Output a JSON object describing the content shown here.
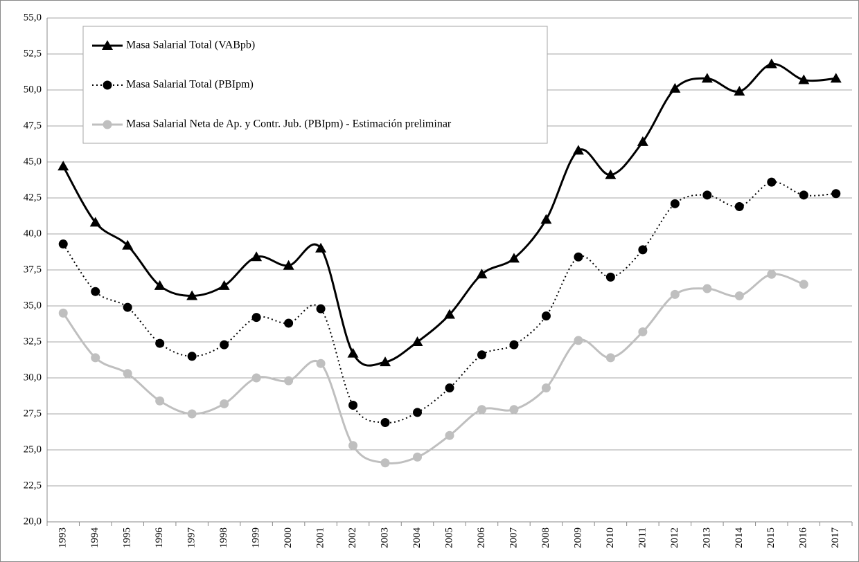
{
  "chart_data": {
    "type": "line",
    "categories": [
      "1993",
      "1994",
      "1995",
      "1996",
      "1997",
      "1998",
      "1999",
      "2000",
      "2001",
      "2002",
      "2003",
      "2004",
      "2005",
      "2006",
      "2007",
      "2008",
      "2009",
      "2010",
      "2011",
      "2012",
      "2013",
      "2014",
      "2015",
      "2016",
      "2017"
    ],
    "series": [
      {
        "name": "Masa Salarial Total (VABpb)",
        "color": "#000000",
        "marker": "triangle",
        "dash": "solid",
        "values": [
          44.7,
          40.8,
          39.2,
          36.4,
          35.7,
          36.4,
          38.4,
          37.8,
          39.0,
          31.7,
          31.1,
          32.5,
          34.4,
          37.2,
          38.3,
          41.0,
          45.8,
          44.1,
          46.4,
          50.1,
          50.8,
          49.9,
          51.8,
          50.7,
          50.8
        ]
      },
      {
        "name": "Masa Salarial Total (PBIpm)",
        "color": "#000000",
        "marker": "circle",
        "dash": "dotted",
        "values": [
          39.3,
          36.0,
          34.9,
          32.4,
          31.5,
          32.3,
          34.2,
          33.8,
          34.8,
          28.1,
          26.9,
          27.6,
          29.3,
          31.6,
          32.3,
          34.3,
          38.4,
          37.0,
          38.9,
          42.1,
          42.7,
          41.9,
          43.6,
          42.7,
          42.8
        ]
      },
      {
        "name": "Masa Salarial Neta de Ap. y Contr. Jub. (PBIpm) - Estimación preliminar",
        "color": "#bfbfbf",
        "marker": "circle",
        "dash": "solid",
        "values": [
          34.5,
          31.4,
          30.3,
          28.4,
          27.5,
          28.2,
          30.0,
          29.8,
          31.0,
          25.3,
          24.1,
          24.5,
          26.0,
          27.8,
          27.8,
          29.3,
          32.6,
          31.4,
          33.2,
          35.8,
          36.2,
          35.7,
          37.2,
          36.5,
          null
        ]
      }
    ],
    "ylim": [
      20,
      55
    ],
    "yticks": [
      {
        "value": 20,
        "label": "20,0"
      },
      {
        "value": 22.5,
        "label": "22,5"
      },
      {
        "value": 25,
        "label": "25,0"
      },
      {
        "value": 27.5,
        "label": "27,5"
      },
      {
        "value": 30,
        "label": "30,0"
      },
      {
        "value": 32.5,
        "label": "32,5"
      },
      {
        "value": 35,
        "label": "35,0"
      },
      {
        "value": 37.5,
        "label": "37,5"
      },
      {
        "value": 40,
        "label": "40,0"
      },
      {
        "value": 42.5,
        "label": "42,5"
      },
      {
        "value": 45,
        "label": "45,0"
      },
      {
        "value": 47.5,
        "label": "47,5"
      },
      {
        "value": 50,
        "label": "50,0"
      },
      {
        "value": 52.5,
        "label": "52,5"
      },
      {
        "value": 55,
        "label": "55,0"
      }
    ],
    "grid": true,
    "legend": "upper left"
  }
}
